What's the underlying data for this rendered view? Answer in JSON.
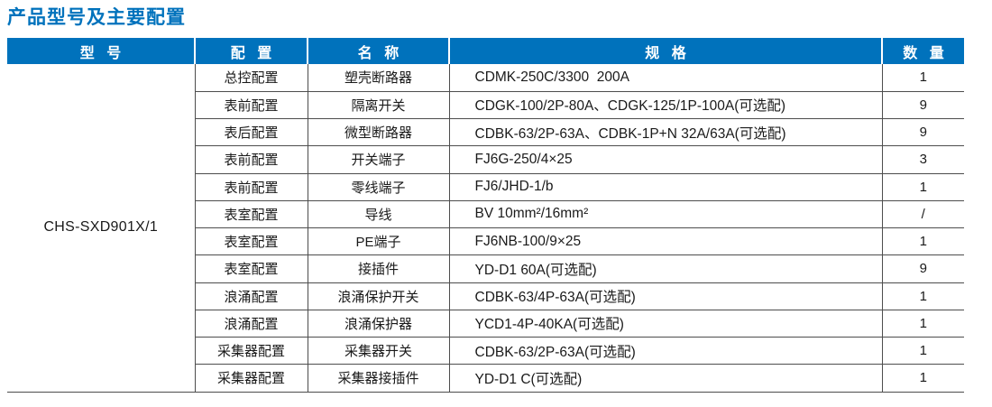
{
  "page": {
    "title": "产品型号及主要配置"
  },
  "colors": {
    "accent_blue": "#0072bc",
    "header_text": "#ffffff",
    "table_border": "#4d4d4d",
    "body_text": "#1a1a1a"
  },
  "table": {
    "headers": [
      "型 号",
      "配 置",
      "名 称",
      "规 格",
      "数 量"
    ],
    "model": "CHS-SXD901X/1",
    "rows": [
      {
        "config": "总控配置",
        "name": "塑壳断路器",
        "spec": "CDMK-250C/3300  200A",
        "qty": "1"
      },
      {
        "config": "表前配置",
        "name": "隔离开关",
        "spec": "CDGK-100/2P-80A、CDGK-125/1P-100A(可选配)",
        "qty": "9"
      },
      {
        "config": "表后配置",
        "name": "微型断路器",
        "spec": "CDBK-63/2P-63A、CDBK-1P+N 32A/63A(可选配)",
        "qty": "9"
      },
      {
        "config": "表前配置",
        "name": "开关端子",
        "spec": "FJ6G-250/4×25",
        "qty": "3"
      },
      {
        "config": "表前配置",
        "name": "零线端子",
        "spec": "FJ6/JHD-1/b",
        "qty": "1"
      },
      {
        "config": "表室配置",
        "name": "导线",
        "spec": "BV 10mm²/16mm²",
        "qty": "/"
      },
      {
        "config": "表室配置",
        "name": "PE端子",
        "spec": "FJ6NB-100/9×25",
        "qty": "1"
      },
      {
        "config": "表室配置",
        "name": "接插件",
        "spec": "YD-D1 60A(可选配)",
        "qty": "9"
      },
      {
        "config": "浪涌配置",
        "name": "浪涌保护开关",
        "spec": "CDBK-63/4P-63A(可选配)",
        "qty": "1"
      },
      {
        "config": "浪涌配置",
        "name": "浪涌保护器",
        "spec": "YCD1-4P-40KA(可选配)",
        "qty": "1"
      },
      {
        "config": "采集器配置",
        "name": "采集器开关",
        "spec": "CDBK-63/2P-63A(可选配)",
        "qty": "1"
      },
      {
        "config": "采集器配置",
        "name": "采集器接插件",
        "spec": "YD-D1 C(可选配)",
        "qty": "1"
      }
    ]
  }
}
